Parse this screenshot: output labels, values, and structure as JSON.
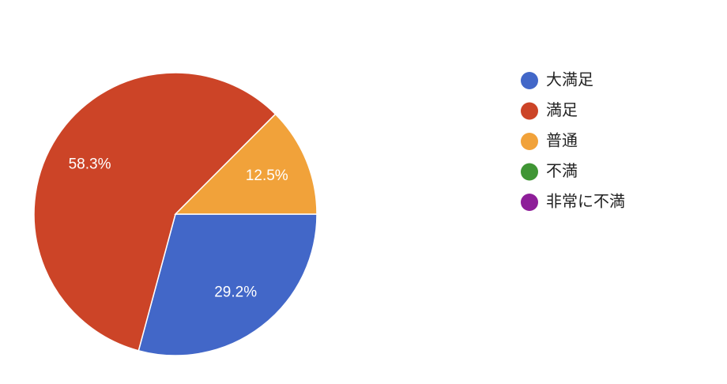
{
  "chart_data": {
    "type": "pie",
    "categories": [
      "大満足",
      "満足",
      "普通",
      "不満",
      "非常に不満"
    ],
    "values": [
      29.2,
      58.3,
      12.5,
      0,
      0
    ],
    "value_labels": [
      "29.2%",
      "58.3%",
      "12.5%",
      null,
      null
    ],
    "colors": [
      "#4267c8",
      "#cc4427",
      "#f1a23a",
      "#3f9534",
      "#8e1e99"
    ],
    "legend": "right"
  }
}
